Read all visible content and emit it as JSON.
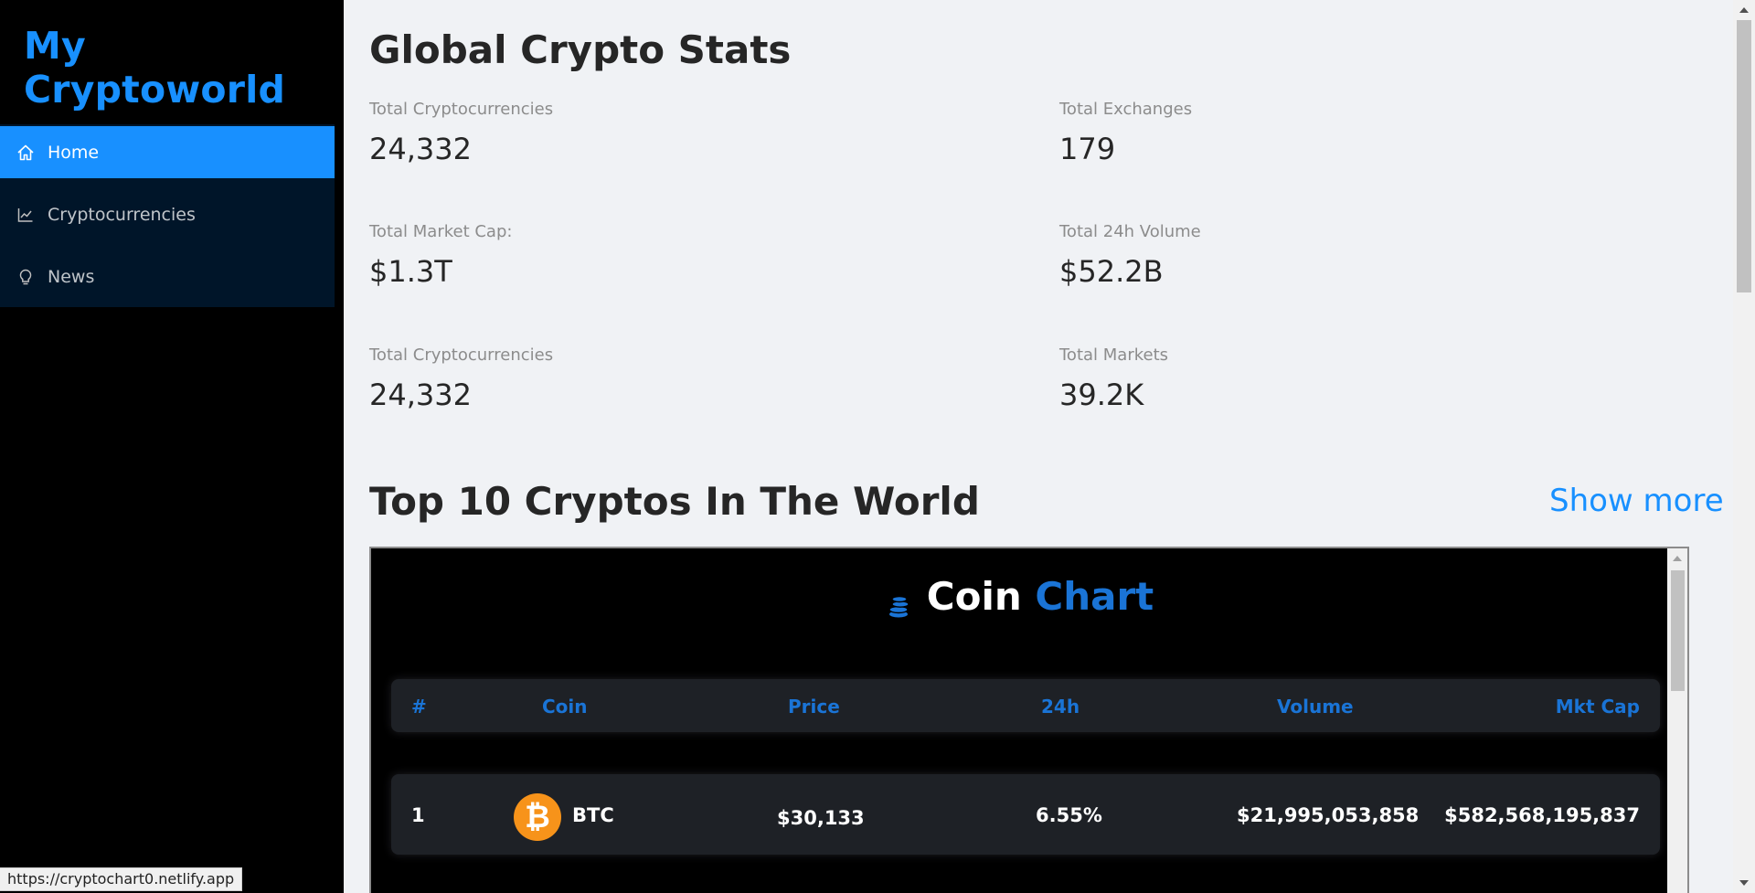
{
  "sidebar": {
    "logo": "My Cryptoworld",
    "menu": [
      {
        "label": "Home",
        "icon": "home-icon",
        "active": true
      },
      {
        "label": "Cryptocurrencies",
        "icon": "line-chart-icon",
        "active": false
      },
      {
        "label": "News",
        "icon": "bulb-icon",
        "active": false
      }
    ],
    "status_url": "https://cryptochart0.netlify.app"
  },
  "stats": {
    "title": "Global Crypto Stats",
    "items": [
      {
        "label": "Total Cryptocurrencies",
        "value": "24,332"
      },
      {
        "label": "Total Exchanges",
        "value": "179"
      },
      {
        "label": "Total Market Cap:",
        "value": "$1.3T"
      },
      {
        "label": "Total 24h Volume",
        "value": "$52.2B"
      },
      {
        "label": "Total Cryptocurrencies",
        "value": "24,332"
      },
      {
        "label": "Total Markets",
        "value": "39.2K"
      }
    ]
  },
  "top": {
    "title": "Top 10 Cryptos In The World",
    "show_more": "Show more"
  },
  "coin_chart": {
    "title_main": "Coin",
    "title_accent": "Chart",
    "columns": [
      "#",
      "Coin",
      "Price",
      "24h",
      "Volume",
      "Mkt Cap"
    ],
    "rows": [
      {
        "rank": "1",
        "logo": "₿",
        "coin": "BTC",
        "price": "$30,133",
        "change": "6.55%",
        "volume": "$21,995,053,858",
        "mkt_cap": "$582,568,195,837"
      }
    ]
  },
  "colors": {
    "accent": "#1890ff",
    "sidebar_bg": "#000000",
    "menu_bg": "#001529",
    "chart_accent": "#1a74d6",
    "btc": "#f7931a"
  }
}
